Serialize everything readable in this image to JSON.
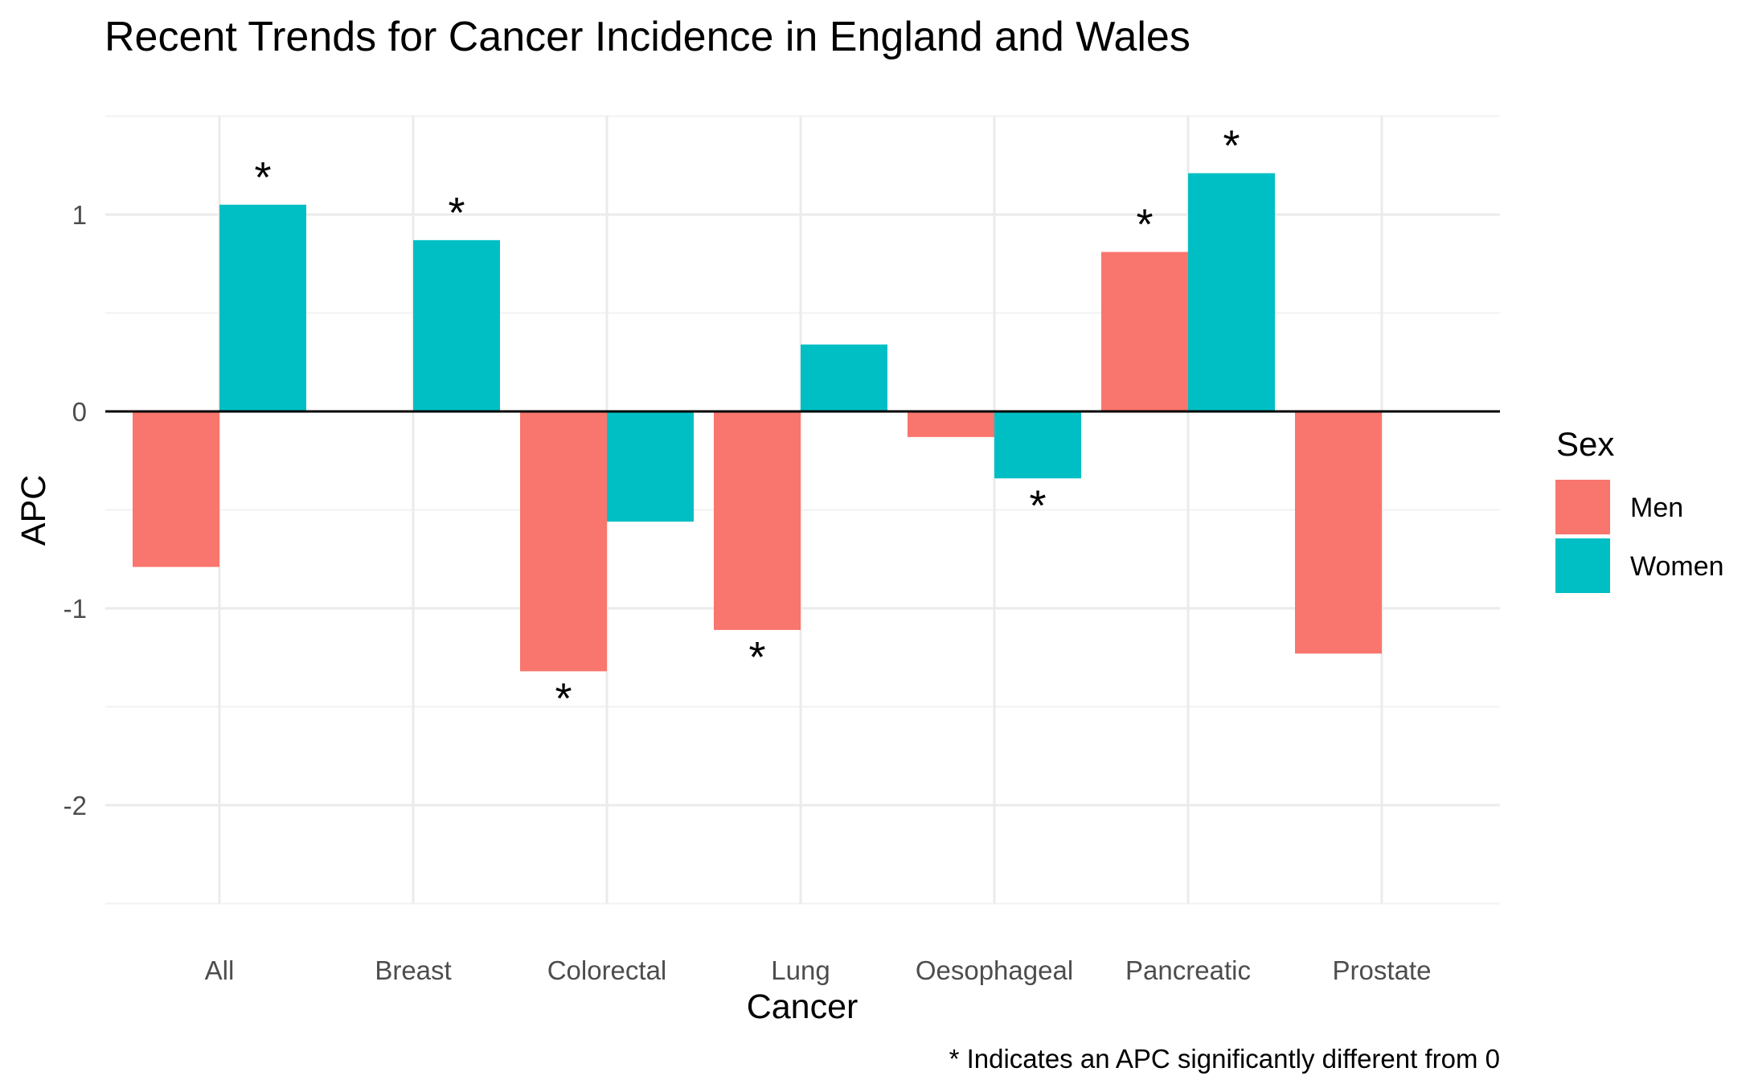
{
  "chart_data": {
    "type": "bar",
    "title": "Recent Trends for Cancer Incidence in England and Wales",
    "xlabel": "Cancer",
    "ylabel": "APC",
    "categories": [
      "All",
      "Breast",
      "Colorectal",
      "Lung",
      "Oesophageal",
      "Pancreatic",
      "Prostate"
    ],
    "series": [
      {
        "name": "Men",
        "color": "#F8766D",
        "values": [
          -0.79,
          null,
          -1.32,
          -1.11,
          -0.13,
          0.81,
          -1.23
        ],
        "significant": [
          false,
          false,
          true,
          true,
          false,
          true,
          false
        ]
      },
      {
        "name": "Women",
        "color": "#00BFC4",
        "values": [
          1.05,
          0.87,
          -0.56,
          0.34,
          -0.34,
          1.21,
          null
        ],
        "significant": [
          true,
          true,
          false,
          false,
          true,
          true,
          false
        ]
      }
    ],
    "ylim": [
      -2.5,
      1.5
    ],
    "yticks": [
      -2,
      -1,
      0,
      1
    ],
    "ytick_labels": [
      "-2",
      "-1",
      "0",
      "1"
    ],
    "significance_marker": "*",
    "legend": {
      "title": "Sex",
      "position": "right",
      "entries": [
        "Men",
        "Women"
      ]
    },
    "caption": "* Indicates an APC significantly different from 0",
    "grid": true
  }
}
